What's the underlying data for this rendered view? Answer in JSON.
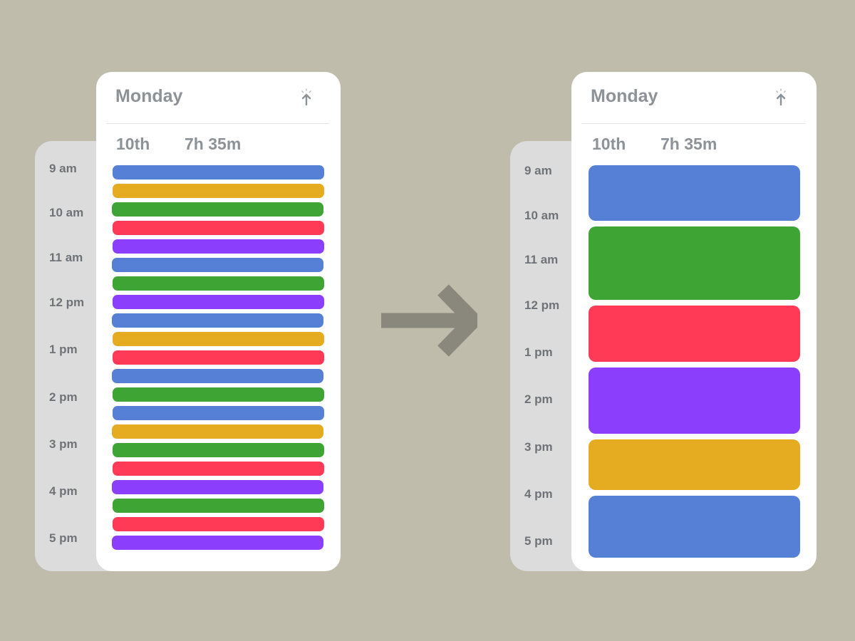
{
  "colors": {
    "blue": "#5680d6",
    "yellow": "#e5ac22",
    "green": "#3ea535",
    "red": "#ff3a57",
    "purple": "#8b3ffd"
  },
  "before": {
    "day": "Monday",
    "date": "10th",
    "duration": "7h 35m",
    "pin_icon": "pin-arrow-up-icon",
    "times": [
      "9 am",
      "10 am",
      "11 am",
      "12 pm",
      "1 pm",
      "2 pm",
      "3 pm",
      "4 pm",
      "5 pm"
    ],
    "events": [
      "blue",
      "yellow",
      "green",
      "red",
      "purple",
      "blue",
      "green",
      "purple",
      "blue",
      "yellow",
      "red",
      "blue",
      "green",
      "blue",
      "yellow",
      "green",
      "red",
      "purple",
      "green",
      "red",
      "purple"
    ]
  },
  "after": {
    "day": "Monday",
    "date": "10th",
    "duration": "7h 35m",
    "pin_icon": "pin-arrow-up-icon",
    "times": [
      "9 am",
      "10 am",
      "11 am",
      "12 pm",
      "1 pm",
      "2 pm",
      "3 pm",
      "4 pm",
      "5 pm"
    ],
    "events": [
      "blue",
      "green",
      "red",
      "purple",
      "yellow",
      "blue"
    ]
  },
  "arrow_icon": "arrow-right-icon"
}
